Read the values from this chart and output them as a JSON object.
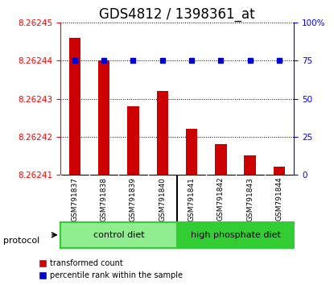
{
  "title": "GDS4812 / 1398361_at",
  "samples": [
    "GSM791837",
    "GSM791838",
    "GSM791839",
    "GSM791840",
    "GSM791841",
    "GSM791842",
    "GSM791843",
    "GSM791844"
  ],
  "red_values": [
    8.262446,
    8.26244,
    8.262428,
    8.262432,
    8.262422,
    8.262418,
    8.262415,
    8.262412
  ],
  "blue_values": [
    75,
    75,
    75,
    75,
    75,
    75,
    75,
    75
  ],
  "ylim_left": [
    8.26241,
    8.26245
  ],
  "ylim_right": [
    0,
    100
  ],
  "yticks_left": [
    8.26241,
    8.26242,
    8.26243,
    8.26244,
    8.26245
  ],
  "yticks_right": [
    0,
    25,
    50,
    75,
    100
  ],
  "ytick_labels_right": [
    "0",
    "25",
    "50",
    "75",
    "100%"
  ],
  "bar_color": "#CC0000",
  "dot_color": "#0000CC",
  "bg_color": "#D3D3D3",
  "group1_light": "#90EE90",
  "group2_dark": "#32CD32",
  "protocol_label": "protocol",
  "legend_red": "transformed count",
  "legend_blue": "percentile rank within the sample",
  "title_fontsize": 12,
  "tick_fontsize": 7.5
}
